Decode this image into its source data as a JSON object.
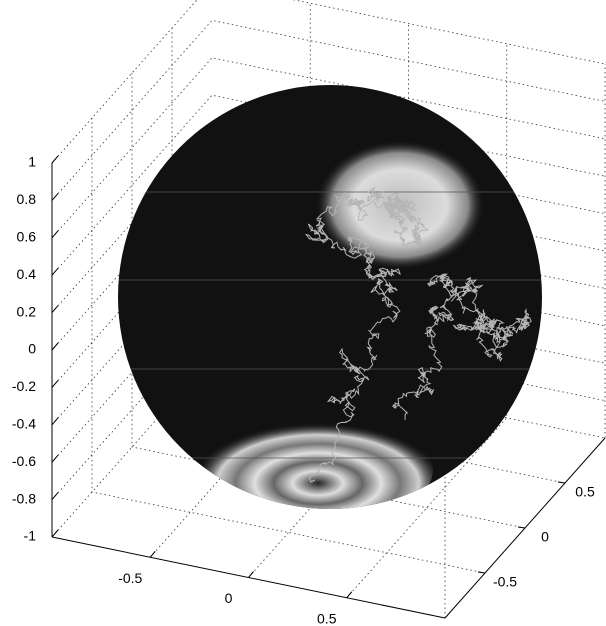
{
  "chart_data": {
    "type": "sphere3d",
    "xlim": [
      -1,
      1
    ],
    "ylim": [
      -1,
      1
    ],
    "zlim": [
      -1,
      1
    ],
    "xticks": [
      -0.5,
      0,
      0.5
    ],
    "yticks": [
      -0.5,
      0,
      0.5
    ],
    "zticks": [
      -1,
      -0.8,
      -0.6,
      -0.4,
      -0.2,
      0,
      0.2,
      0.4,
      0.6,
      0.8,
      1
    ],
    "grid": true
  }
}
